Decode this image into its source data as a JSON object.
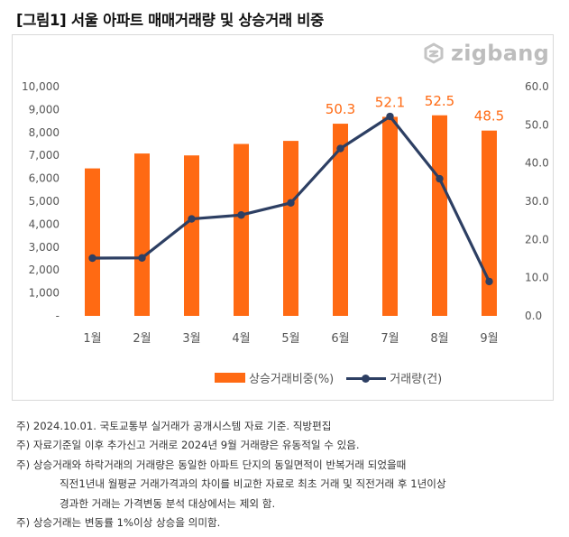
{
  "title": "[그림1] 서울 아파트 매매거래량 및 상승거래 비중",
  "logo": {
    "text": "zigbang",
    "icon": "zigbang-logo-icon"
  },
  "chart_data": {
    "type": "bar+line",
    "categories": [
      "1월",
      "2월",
      "3월",
      "4월",
      "5월",
      "6월",
      "7월",
      "8월",
      "9월"
    ],
    "series": [
      {
        "name": "상승거래비중(%)",
        "type": "bar",
        "axis": "right",
        "values": [
          38.6,
          42.5,
          42.0,
          45.0,
          45.8,
          50.3,
          52.1,
          52.5,
          48.5
        ],
        "color": "#ff6a13"
      },
      {
        "name": "거래량(건)",
        "type": "line",
        "axis": "left",
        "values": [
          2520,
          2530,
          4230,
          4400,
          4930,
          7300,
          8700,
          5980,
          1500
        ],
        "color": "#2d3f63"
      }
    ],
    "data_labels": [
      {
        "index": 5,
        "text": "50.3"
      },
      {
        "index": 6,
        "text": "52.1"
      },
      {
        "index": 7,
        "text": "52.5"
      },
      {
        "index": 8,
        "text": "48.5"
      }
    ],
    "y_left": {
      "ticks": [
        "-",
        "1,000",
        "2,000",
        "3,000",
        "4,000",
        "5,000",
        "6,000",
        "7,000",
        "8,000",
        "9,000",
        "10,000"
      ],
      "ylim": [
        0,
        10000
      ]
    },
    "y_right": {
      "ticks": [
        "0.0",
        "10.0",
        "20.0",
        "30.0",
        "40.0",
        "50.0",
        "60.0"
      ],
      "ylim": [
        0,
        60
      ]
    },
    "legend_position": "bottom",
    "grid": false
  },
  "notes": [
    "주) 2024.10.01. 국토교통부 실거래가 공개시스템 자료 기준. 직방편집",
    "주) 자료기준일 이후 추가신고 거래로 2024년 9월 거래량은 유동적일 수 있음.",
    "주) 상승거래와 하락거래의 거래량은 동일한 아파트 단지의 동일면적이 반복거래 되었을때",
    "직전1년내 월평균 거래가격과의 차이를 비교한 자료로 최초 거래 및 직전거래 후 1년이상",
    "경과한 거래는 가격변동 분석 대상에서는 제외 함.",
    "주) 상승거래는 변동률 1%이상 상승을 의미함."
  ]
}
